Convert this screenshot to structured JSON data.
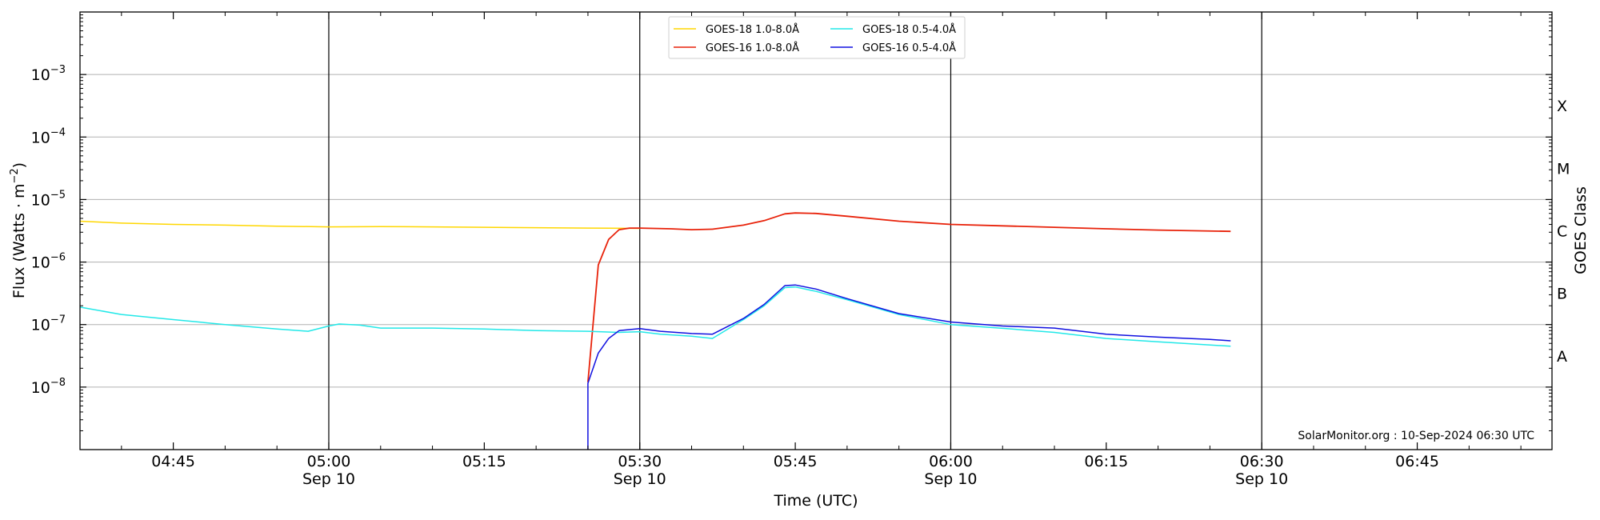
{
  "chart_data": {
    "type": "line",
    "ylabel": "Flux (Watts · m⁻²)",
    "xlabel": "Time (UTC)",
    "right_axis_label": "GOES Class",
    "yscale": "log",
    "ylim": [
      1e-09,
      0.01
    ],
    "xlim": [
      "04:36",
      "06:58"
    ],
    "grid": "horizontal",
    "legend_position": "top-center",
    "watermark": "SolarMonitor.org : 10-Sep-2024 06:30 UTC",
    "ytick_labels": [
      {
        "base": "10",
        "exp": "−8",
        "value": 1e-08
      },
      {
        "base": "10",
        "exp": "−7",
        "value": 1e-07
      },
      {
        "base": "10",
        "exp": "−6",
        "value": 1e-06
      },
      {
        "base": "10",
        "exp": "−5",
        "value": 1e-05
      },
      {
        "base": "10",
        "exp": "−4",
        "value": 0.0001
      },
      {
        "base": "10",
        "exp": "−3",
        "value": 0.001
      }
    ],
    "xticks": [
      {
        "time": "04:45",
        "label": "04:45",
        "date": ""
      },
      {
        "time": "05:00",
        "label": "05:00",
        "date": "Sep 10"
      },
      {
        "time": "05:15",
        "label": "05:15",
        "date": ""
      },
      {
        "time": "05:30",
        "label": "05:30",
        "date": "Sep 10"
      },
      {
        "time": "05:45",
        "label": "05:45",
        "date": ""
      },
      {
        "time": "06:00",
        "label": "06:00",
        "date": "Sep 10"
      },
      {
        "time": "06:15",
        "label": "06:15",
        "date": ""
      },
      {
        "time": "06:30",
        "label": "06:30",
        "date": "Sep 10"
      },
      {
        "time": "06:45",
        "label": "06:45",
        "date": ""
      }
    ],
    "vertical_lines": [
      "05:00",
      "05:30",
      "06:00",
      "06:30"
    ],
    "goes_classes": [
      {
        "label": "A",
        "value": 3.16e-08
      },
      {
        "label": "B",
        "value": 3.16e-07
      },
      {
        "label": "C",
        "value": 3.16e-06
      },
      {
        "label": "M",
        "value": 3.16e-05
      },
      {
        "label": "X",
        "value": 0.000316
      }
    ],
    "series": [
      {
        "name": "GOES-18 1.0-8.0Å",
        "color": "#ffd700",
        "points": [
          [
            "04:36",
            4.5e-06
          ],
          [
            "04:40",
            4.2e-06
          ],
          [
            "04:45",
            4e-06
          ],
          [
            "04:50",
            3.9e-06
          ],
          [
            "04:55",
            3.75e-06
          ],
          [
            "05:00",
            3.65e-06
          ],
          [
            "05:05",
            3.7e-06
          ],
          [
            "05:10",
            3.65e-06
          ],
          [
            "05:15",
            3.6e-06
          ],
          [
            "05:20",
            3.55e-06
          ],
          [
            "05:25",
            3.5e-06
          ],
          [
            "05:30",
            3.45e-06
          ]
        ]
      },
      {
        "name": "GOES-16 1.0-8.0Å",
        "color": "#e8220a",
        "points": [
          [
            "05:25",
            1.2e-08
          ],
          [
            "05:26",
            9e-07
          ],
          [
            "05:27",
            2.3e-06
          ],
          [
            "05:28",
            3.3e-06
          ],
          [
            "05:29",
            3.5e-06
          ],
          [
            "05:30",
            3.5e-06
          ],
          [
            "05:33",
            3.4e-06
          ],
          [
            "05:35",
            3.3e-06
          ],
          [
            "05:37",
            3.35e-06
          ],
          [
            "05:40",
            3.9e-06
          ],
          [
            "05:42",
            4.6e-06
          ],
          [
            "05:44",
            5.9e-06
          ],
          [
            "05:45",
            6.1e-06
          ],
          [
            "05:47",
            6e-06
          ],
          [
            "05:50",
            5.4e-06
          ],
          [
            "05:55",
            4.5e-06
          ],
          [
            "06:00",
            4e-06
          ],
          [
            "06:05",
            3.8e-06
          ],
          [
            "06:10",
            3.6e-06
          ],
          [
            "06:15",
            3.4e-06
          ],
          [
            "06:20",
            3.25e-06
          ],
          [
            "06:27",
            3.1e-06
          ]
        ]
      },
      {
        "name": "GOES-18 0.5-4.0Å",
        "color": "#22e8e8",
        "points": [
          [
            "04:36",
            1.9e-07
          ],
          [
            "04:40",
            1.45e-07
          ],
          [
            "04:45",
            1.2e-07
          ],
          [
            "04:50",
            1e-07
          ],
          [
            "04:55",
            8.5e-08
          ],
          [
            "04:58",
            7.8e-08
          ],
          [
            "05:00",
            9.5e-08
          ],
          [
            "05:01",
            1.02e-07
          ],
          [
            "05:03",
            9.8e-08
          ],
          [
            "05:05",
            8.8e-08
          ],
          [
            "05:10",
            8.8e-08
          ],
          [
            "05:15",
            8.5e-08
          ],
          [
            "05:20",
            8e-08
          ],
          [
            "05:25",
            7.8e-08
          ],
          [
            "05:28",
            7.5e-08
          ],
          [
            "05:30",
            7.7e-08
          ],
          [
            "05:32",
            7e-08
          ],
          [
            "05:35",
            6.5e-08
          ],
          [
            "05:37",
            6e-08
          ],
          [
            "05:40",
            1.2e-07
          ],
          [
            "05:42",
            2e-07
          ],
          [
            "05:44",
            3.9e-07
          ],
          [
            "05:45",
            4e-07
          ],
          [
            "05:47",
            3.4e-07
          ],
          [
            "05:50",
            2.5e-07
          ],
          [
            "05:55",
            1.45e-07
          ],
          [
            "06:00",
            1e-07
          ],
          [
            "06:05",
            8.7e-08
          ],
          [
            "06:10",
            7.5e-08
          ],
          [
            "06:15",
            6e-08
          ],
          [
            "06:20",
            5.3e-08
          ],
          [
            "06:27",
            4.5e-08
          ]
        ]
      },
      {
        "name": "GOES-16 0.5-4.0Å",
        "color": "#1010e0",
        "points": [
          [
            "05:25",
            1e-09
          ],
          [
            "05:25",
            1.15e-08
          ],
          [
            "05:26",
            3.5e-08
          ],
          [
            "05:27",
            6e-08
          ],
          [
            "05:28",
            8e-08
          ],
          [
            "05:30",
            8.6e-08
          ],
          [
            "05:32",
            7.8e-08
          ],
          [
            "05:35",
            7.2e-08
          ],
          [
            "05:37",
            7e-08
          ],
          [
            "05:40",
            1.25e-07
          ],
          [
            "05:42",
            2.1e-07
          ],
          [
            "05:44",
            4.2e-07
          ],
          [
            "05:45",
            4.3e-07
          ],
          [
            "05:47",
            3.7e-07
          ],
          [
            "05:50",
            2.6e-07
          ],
          [
            "05:55",
            1.5e-07
          ],
          [
            "06:00",
            1.1e-07
          ],
          [
            "06:05",
            9.5e-08
          ],
          [
            "06:10",
            8.8e-08
          ],
          [
            "06:15",
            7e-08
          ],
          [
            "06:20",
            6.3e-08
          ],
          [
            "06:25",
            5.8e-08
          ],
          [
            "06:27",
            5.5e-08
          ]
        ]
      }
    ]
  }
}
